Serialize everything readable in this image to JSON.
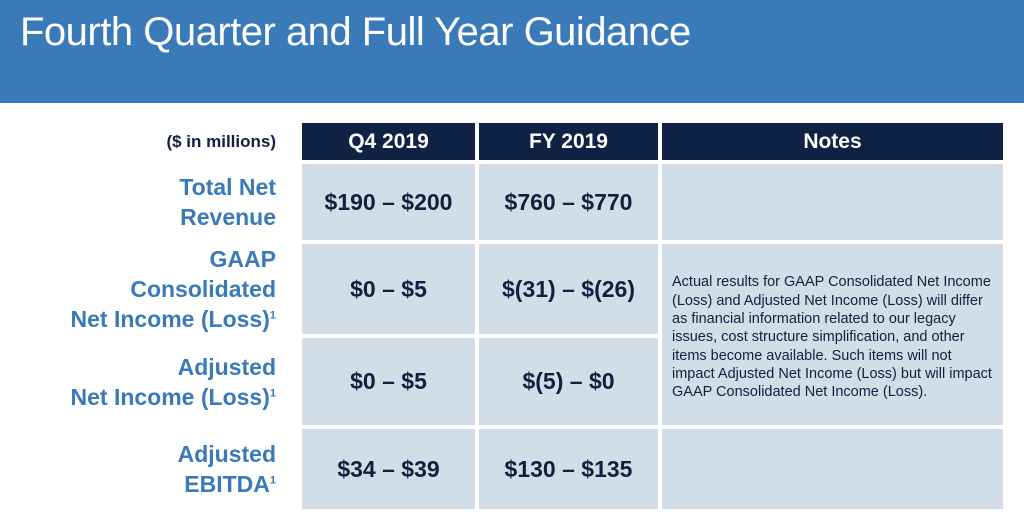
{
  "header": {
    "title": "Fourth Quarter and Full Year Guidance"
  },
  "table": {
    "units_label": "($ in millions)",
    "columns": [
      "Q4 2019",
      "FY 2019",
      "Notes"
    ],
    "rows": [
      {
        "label_lines": [
          "Total Net",
          "Revenue"
        ],
        "footnote": "",
        "q4": "$190 – $200",
        "fy": "$760 – $770"
      },
      {
        "label_lines": [
          "GAAP",
          "Consolidated",
          "Net Income (Loss)"
        ],
        "footnote": "1",
        "q4": "$0 – $5",
        "fy": "$(31) – $(26)"
      },
      {
        "label_lines": [
          "Adjusted",
          "Net Income (Loss)"
        ],
        "footnote": "1",
        "q4": "$0 – $5",
        "fy": "$(5) – $0"
      },
      {
        "label_lines": [
          "Adjusted",
          "EBITDA"
        ],
        "footnote": "1",
        "q4": "$34 – $39",
        "fy": "$130 – $135"
      }
    ],
    "notes": {
      "total_net_revenue": "",
      "net_income": "Actual results for GAAP Consolidated Net Income (Loss) and Adjusted Net Income (Loss) will differ as financial information related to our legacy issues, cost structure simplification, and other items become available. Such items will not impact Adjusted Net Income (Loss) but will impact GAAP Consolidated Net Income (Loss).",
      "adjusted_ebitda": ""
    }
  },
  "colors": {
    "header_bg": "#3a7ab8",
    "column_header_bg": "#0f2244",
    "cell_bg": "#d1dde7",
    "row_label": "#3a7ab8",
    "body_text": "#0f2040"
  }
}
